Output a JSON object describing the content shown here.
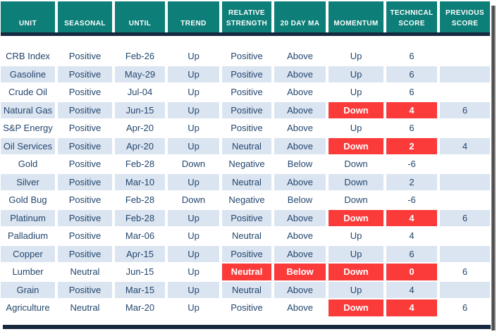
{
  "table": {
    "columns": [
      {
        "key": "unit",
        "label": "UNIT"
      },
      {
        "key": "seasonal",
        "label": "SEASONAL"
      },
      {
        "key": "until",
        "label": "UNTIL"
      },
      {
        "key": "trend",
        "label": "TREND"
      },
      {
        "key": "relative_strength",
        "label": "RELATIVE STRENGTH"
      },
      {
        "key": "ma20",
        "label": "20 DAY MA"
      },
      {
        "key": "momentum",
        "label": "MOMENTUM"
      },
      {
        "key": "technical_score",
        "label": "TECHNICAL SCORE"
      },
      {
        "key": "previous_score",
        "label": "PREVIOUS SCORE"
      }
    ],
    "rows": [
      {
        "unit": "CRB Index",
        "seasonal": "Positive",
        "until": "Feb-26",
        "trend": "Up",
        "relative_strength": "Positive",
        "ma20": "Above",
        "momentum": "Up",
        "technical_score": "6",
        "previous_score": "",
        "red": []
      },
      {
        "unit": "Gasoline",
        "seasonal": "Positive",
        "until": "May-29",
        "trend": "Up",
        "relative_strength": "Positive",
        "ma20": "Above",
        "momentum": "Up",
        "technical_score": "6",
        "previous_score": "",
        "red": []
      },
      {
        "unit": "Crude Oil",
        "seasonal": "Positive",
        "until": "Jul-04",
        "trend": "Up",
        "relative_strength": "Positive",
        "ma20": "Above",
        "momentum": "Up",
        "technical_score": "6",
        "previous_score": "",
        "red": []
      },
      {
        "unit": "Natural Gas",
        "seasonal": "Positive",
        "until": "Jun-15",
        "trend": "Up",
        "relative_strength": "Positive",
        "ma20": "Above",
        "momentum": "Down",
        "technical_score": "4",
        "previous_score": "6",
        "red": [
          "momentum",
          "technical_score"
        ]
      },
      {
        "unit": "S&P Energy",
        "seasonal": "Positive",
        "until": "Apr-20",
        "trend": "Up",
        "relative_strength": "Positive",
        "ma20": "Above",
        "momentum": "Up",
        "technical_score": "6",
        "previous_score": "",
        "red": []
      },
      {
        "unit": "Oil Services",
        "seasonal": "Positive",
        "until": "Apr-20",
        "trend": "Up",
        "relative_strength": "Neutral",
        "ma20": "Above",
        "momentum": "Down",
        "technical_score": "2",
        "previous_score": "4",
        "red": [
          "momentum",
          "technical_score"
        ]
      },
      {
        "unit": "Gold",
        "seasonal": "Positive",
        "until": "Feb-28",
        "trend": "Down",
        "relative_strength": "Negative",
        "ma20": "Below",
        "momentum": "Down",
        "technical_score": "-6",
        "previous_score": "",
        "red": []
      },
      {
        "unit": "Silver",
        "seasonal": "Positive",
        "until": "Mar-10",
        "trend": "Up",
        "relative_strength": "Neutral",
        "ma20": "Above",
        "momentum": "Down",
        "technical_score": "2",
        "previous_score": "",
        "red": []
      },
      {
        "unit": "Gold Bug",
        "seasonal": "Positive",
        "until": "Feb-28",
        "trend": "Down",
        "relative_strength": "Negative",
        "ma20": "Below",
        "momentum": "Down",
        "technical_score": "-6",
        "previous_score": "",
        "red": []
      },
      {
        "unit": "Platinum",
        "seasonal": "Positive",
        "until": "Feb-28",
        "trend": "Up",
        "relative_strength": "Positive",
        "ma20": "Above",
        "momentum": "Down",
        "technical_score": "4",
        "previous_score": "6",
        "red": [
          "momentum",
          "technical_score"
        ]
      },
      {
        "unit": "Palladium",
        "seasonal": "Positive",
        "until": "Mar-06",
        "trend": "Up",
        "relative_strength": "Neutral",
        "ma20": "Above",
        "momentum": "Up",
        "technical_score": "4",
        "previous_score": "",
        "red": []
      },
      {
        "unit": "Copper",
        "seasonal": "Positive",
        "until": "Apr-15",
        "trend": "Up",
        "relative_strength": "Positive",
        "ma20": "Above",
        "momentum": "Up",
        "technical_score": "6",
        "previous_score": "",
        "red": []
      },
      {
        "unit": "Lumber",
        "seasonal": "Neutral",
        "until": "Jun-15",
        "trend": "Up",
        "relative_strength": "Neutral",
        "ma20": "Below",
        "momentum": "Down",
        "technical_score": "0",
        "previous_score": "6",
        "red": [
          "relative_strength",
          "ma20",
          "momentum",
          "technical_score"
        ]
      },
      {
        "unit": "Grain",
        "seasonal": "Positive",
        "until": "Mar-15",
        "trend": "Up",
        "relative_strength": "Neutral",
        "ma20": "Above",
        "momentum": "Up",
        "technical_score": "4",
        "previous_score": "",
        "red": []
      },
      {
        "unit": "Agriculture",
        "seasonal": "Neutral",
        "until": "Mar-20",
        "trend": "Up",
        "relative_strength": "Positive",
        "ma20": "Above",
        "momentum": "Down",
        "technical_score": "4",
        "previous_score": "6",
        "red": [
          "momentum",
          "technical_score"
        ]
      }
    ],
    "colors": {
      "header_bg": "#0d7e78",
      "header_text": "#ffffff",
      "zebra_row_bg": "#dbe5f1",
      "plain_row_bg": "#ffffff",
      "alert_cell_bg": "#fb3a3a",
      "alert_cell_text": "#ffffff",
      "body_text": "#24466e",
      "divider_line": "#16293f"
    }
  }
}
